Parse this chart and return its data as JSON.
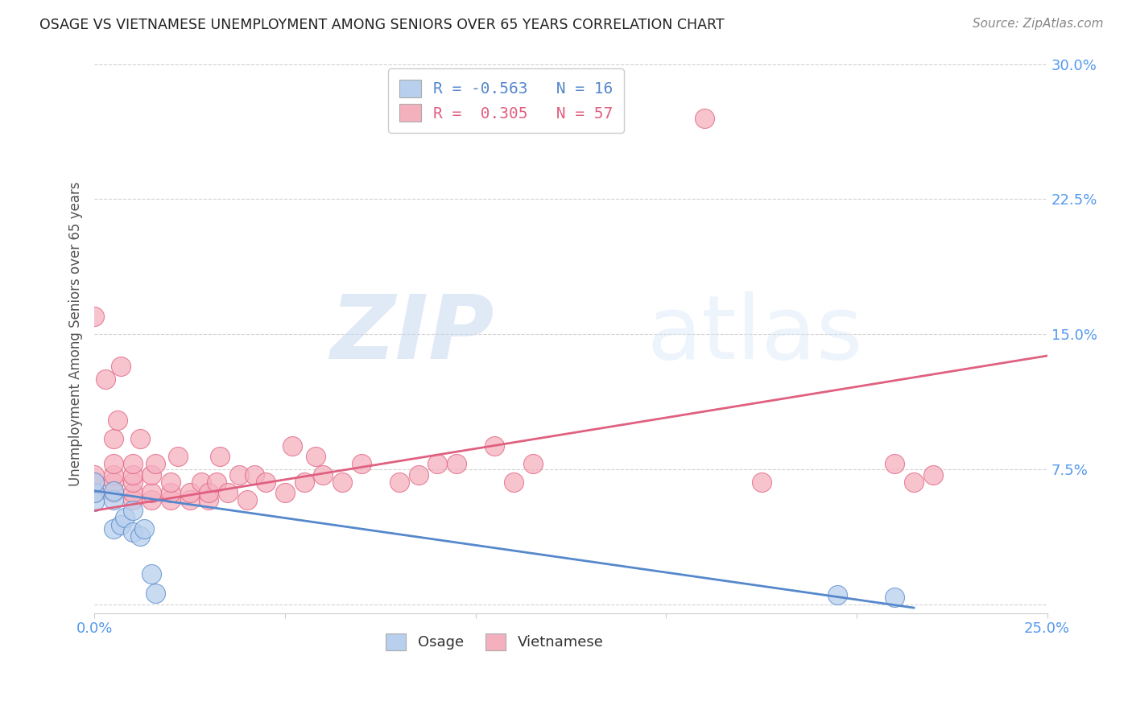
{
  "title": "OSAGE VS VIETNAMESE UNEMPLOYMENT AMONG SENIORS OVER 65 YEARS CORRELATION CHART",
  "source": "Source: ZipAtlas.com",
  "ylabel": "Unemployment Among Seniors over 65 years",
  "xlim": [
    0.0,
    0.25
  ],
  "ylim": [
    -0.005,
    0.305
  ],
  "xticks": [
    0.0,
    0.05,
    0.1,
    0.15,
    0.2,
    0.25
  ],
  "yticks": [
    0.0,
    0.075,
    0.15,
    0.225,
    0.3
  ],
  "xtick_labels": [
    "0.0%",
    "",
    "",
    "",
    "",
    "25.0%"
  ],
  "ytick_labels": [
    "",
    "7.5%",
    "15.0%",
    "22.5%",
    "30.0%"
  ],
  "background_color": "#ffffff",
  "grid_color": "#cccccc",
  "osage_color": "#b8d0ed",
  "vietnamese_color": "#f5b0be",
  "osage_R": -0.563,
  "osage_N": 16,
  "vietnamese_R": 0.305,
  "vietnamese_N": 57,
  "osage_line_color": "#5588cc",
  "vietnamese_line_color": "#e06080",
  "watermark_zip": "ZIP",
  "watermark_atlas": "atlas",
  "legend_label_osage": "Osage",
  "legend_label_vietnamese": "Vietnamese",
  "osage_points_x": [
    0.0,
    0.0,
    0.0,
    0.005,
    0.005,
    0.005,
    0.007,
    0.008,
    0.01,
    0.01,
    0.012,
    0.013,
    0.015,
    0.016,
    0.195,
    0.21
  ],
  "osage_points_y": [
    0.057,
    0.062,
    0.068,
    0.042,
    0.058,
    0.063,
    0.044,
    0.048,
    0.04,
    0.052,
    0.038,
    0.042,
    0.017,
    0.006,
    0.005,
    0.004
  ],
  "vietnamese_points_x": [
    0.0,
    0.0,
    0.0,
    0.0,
    0.003,
    0.005,
    0.005,
    0.005,
    0.005,
    0.005,
    0.006,
    0.007,
    0.01,
    0.01,
    0.01,
    0.01,
    0.01,
    0.012,
    0.015,
    0.015,
    0.015,
    0.016,
    0.02,
    0.02,
    0.02,
    0.022,
    0.025,
    0.025,
    0.028,
    0.03,
    0.03,
    0.032,
    0.033,
    0.035,
    0.038,
    0.04,
    0.042,
    0.045,
    0.05,
    0.052,
    0.055,
    0.058,
    0.06,
    0.065,
    0.07,
    0.08,
    0.085,
    0.09,
    0.095,
    0.105,
    0.11,
    0.115,
    0.16,
    0.175,
    0.21,
    0.215,
    0.22
  ],
  "vietnamese_points_y": [
    0.062,
    0.068,
    0.072,
    0.16,
    0.125,
    0.062,
    0.068,
    0.072,
    0.078,
    0.092,
    0.102,
    0.132,
    0.058,
    0.062,
    0.068,
    0.072,
    0.078,
    0.092,
    0.058,
    0.062,
    0.072,
    0.078,
    0.058,
    0.062,
    0.068,
    0.082,
    0.058,
    0.062,
    0.068,
    0.058,
    0.062,
    0.068,
    0.082,
    0.062,
    0.072,
    0.058,
    0.072,
    0.068,
    0.062,
    0.088,
    0.068,
    0.082,
    0.072,
    0.068,
    0.078,
    0.068,
    0.072,
    0.078,
    0.078,
    0.088,
    0.068,
    0.078,
    0.27,
    0.068,
    0.078,
    0.068,
    0.072
  ],
  "osage_line_x": [
    0.0,
    0.215
  ],
  "osage_line_y": [
    0.063,
    -0.002
  ],
  "vietnamese_line_x": [
    0.0,
    0.25
  ],
  "vietnamese_line_y": [
    0.052,
    0.138
  ]
}
